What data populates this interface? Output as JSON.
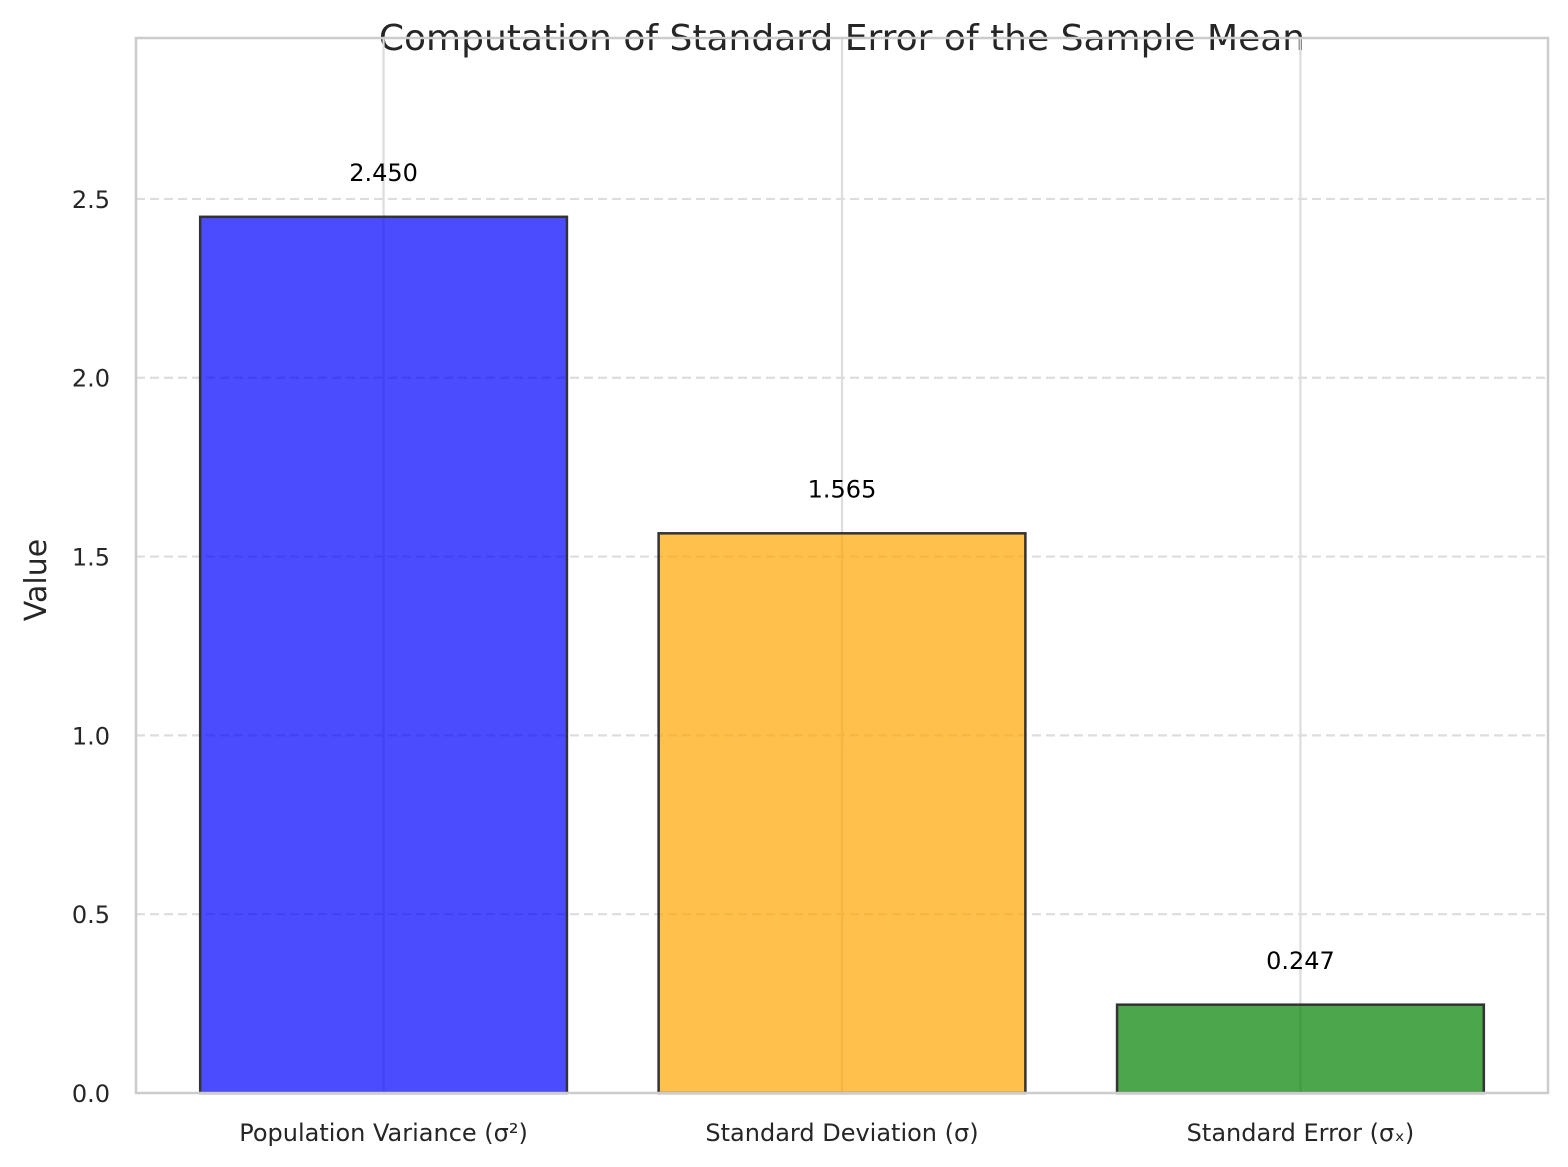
{
  "chart_data": {
    "type": "bar",
    "title": "Computation of Standard Error of the Sample Mean",
    "xlabel": "",
    "ylabel": "Value",
    "categories": [
      "Population Variance (σ²)",
      "Standard Deviation (σ)",
      "Standard Error (σₓ)"
    ],
    "values": [
      2.45,
      1.565,
      0.247
    ],
    "value_labels": [
      "2.450",
      "1.565",
      "0.247"
    ],
    "colors": [
      "#0000ff",
      "#ffa500",
      "#008000"
    ],
    "bar_opacity": 0.7,
    "edge_color": "#333333",
    "ylim": [
      0,
      2.95
    ],
    "yticks": [
      0,
      0.5,
      1.0,
      1.5,
      2.0,
      2.5
    ],
    "ytick_labels": [
      "0.0",
      "0.5",
      "1.0",
      "1.5",
      "2.0",
      "2.5"
    ],
    "grid": true,
    "legend": "none"
  }
}
